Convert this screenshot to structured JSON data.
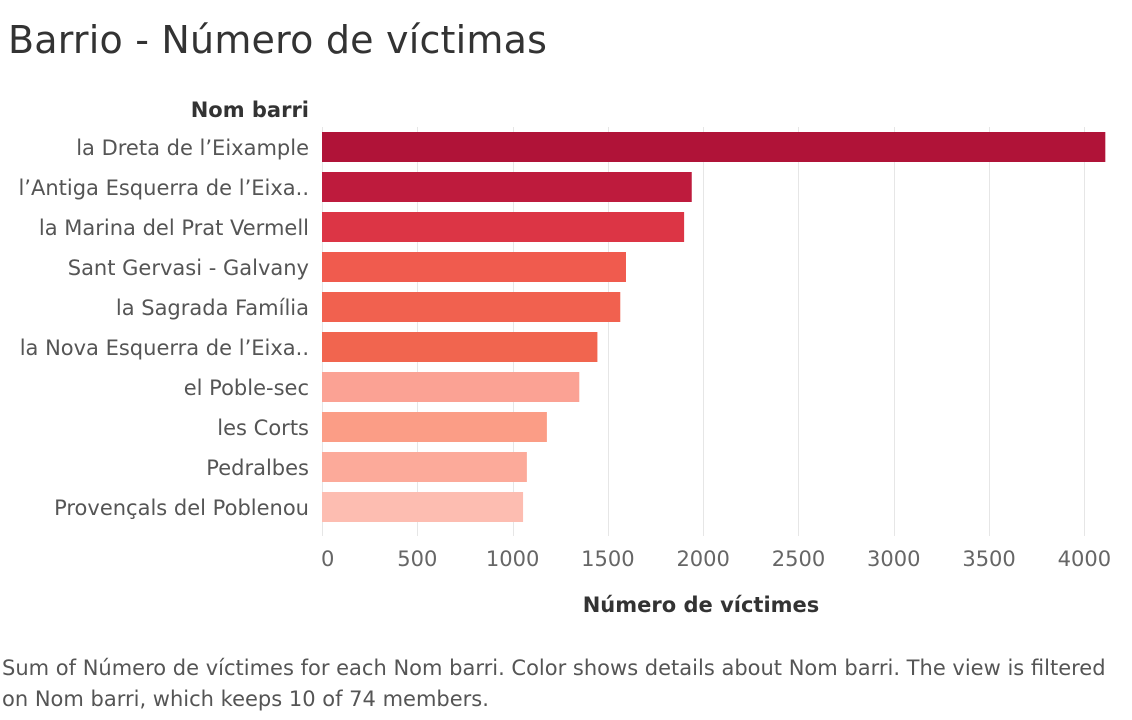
{
  "title": "Barrio - Número de víctimas",
  "caption": "Sum of Número de víctimes for each Nom barri.  Color shows details about Nom barri. The view is filtered on Nom barri, which keeps 10 of 74 members.",
  "colors": {
    "grid": "#e6e6e6",
    "axis_text": "#666666",
    "header_text": "#333333",
    "label_text": "#555555"
  },
  "chart_data": {
    "type": "bar",
    "orientation": "horizontal",
    "category_header": "Nom barri",
    "xlabel": "Número de víctimes",
    "xlim": [
      0,
      4250
    ],
    "xticks": [
      0,
      500,
      1000,
      1500,
      2000,
      2500,
      3000,
      3500,
      4000
    ],
    "grid": true,
    "categories": [
      "la Dreta de l’Eixample",
      "l’Antiga Esquerra de l’Eixa..",
      "la Marina del Prat Vermell",
      "Sant Gervasi - Galvany",
      "la Sagrada Família",
      "la Nova Esquerra de l’Eixa..",
      "el Poble-sec",
      "les Corts",
      "Pedralbes",
      "Provençals del Poblenou"
    ],
    "values": [
      4110,
      1940,
      1900,
      1595,
      1565,
      1445,
      1350,
      1180,
      1075,
      1055
    ],
    "colors": [
      "#b01338",
      "#be1b3d",
      "#dc3545",
      "#f05b4e",
      "#f1614f",
      "#f1654f",
      "#fba294",
      "#fb9d86",
      "#fcaa9a",
      "#fdbdb1"
    ]
  }
}
